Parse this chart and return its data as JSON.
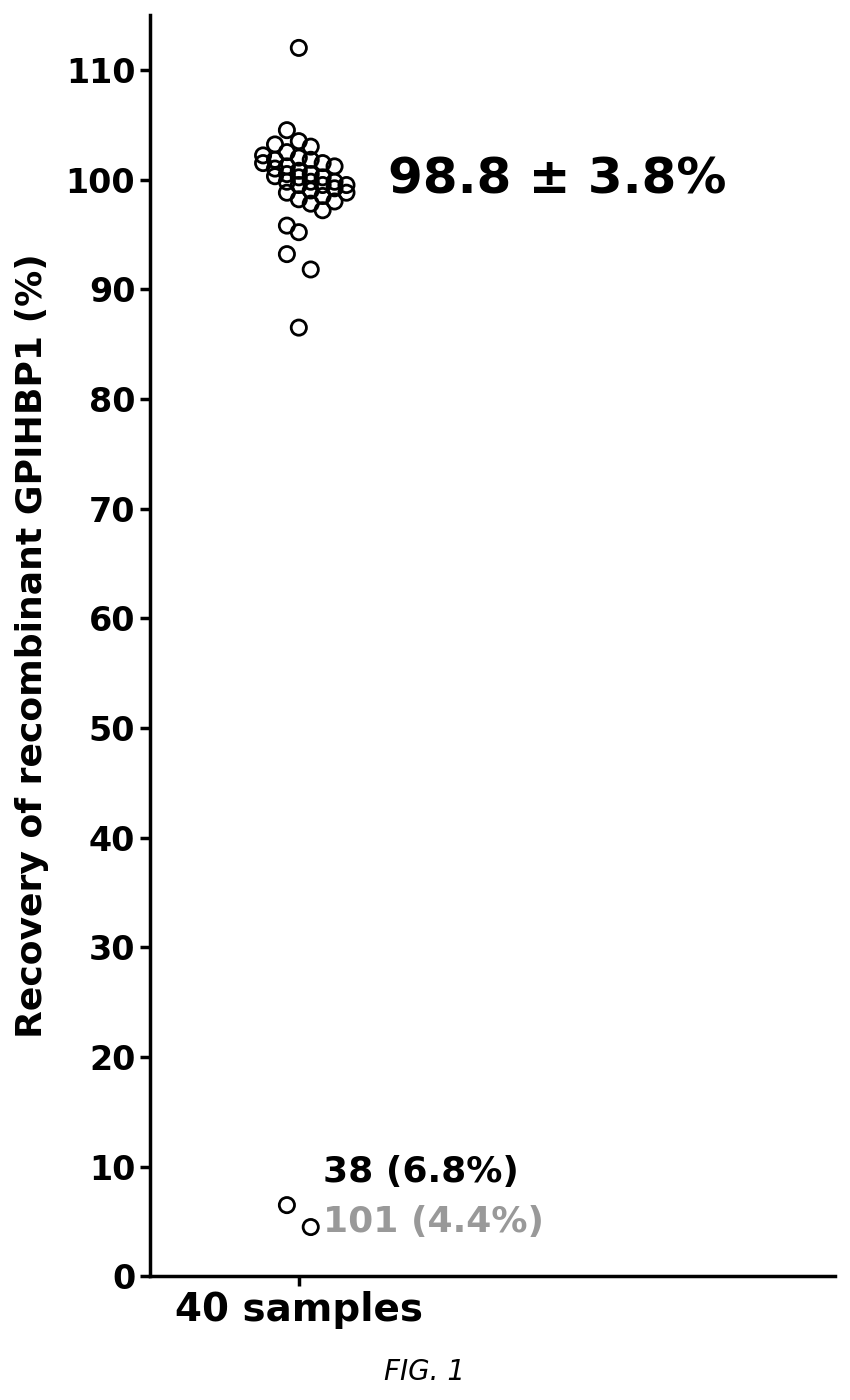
{
  "title": "",
  "xlabel": "40 samples",
  "ylabel": "Recovery of recombinant GPIHBP1 (%)",
  "ylim": [
    0,
    115
  ],
  "yticks": [
    0,
    10,
    20,
    30,
    40,
    50,
    60,
    70,
    80,
    90,
    100,
    110
  ],
  "annotation_mean": "98.8 ± 3.8%",
  "annotation_n1": "38 (6.8%)",
  "annotation_n2": "101 (4.4%)",
  "fig_label": "FIG. 1",
  "scatter_y": [
    112.0,
    104.5,
    103.5,
    103.0,
    103.2,
    102.5,
    102.0,
    101.8,
    101.5,
    101.2,
    102.2,
    101.8,
    101.2,
    100.8,
    100.5,
    100.2,
    99.8,
    99.5,
    101.5,
    101.0,
    100.5,
    100.2,
    99.8,
    99.5,
    99.2,
    98.8,
    100.3,
    99.8,
    99.5,
    99.0,
    98.5,
    98.0,
    98.8,
    98.2,
    97.8,
    97.2,
    95.8,
    95.2,
    93.2,
    91.8,
    86.5,
    6.5,
    4.5
  ],
  "scatter_x_offsets": [
    0.0,
    -0.04,
    0.0,
    0.04,
    -0.08,
    -0.04,
    0.0,
    0.04,
    0.08,
    0.12,
    -0.12,
    -0.08,
    -0.04,
    0.0,
    0.04,
    0.08,
    0.12,
    0.16,
    -0.12,
    -0.08,
    -0.04,
    0.0,
    0.04,
    0.08,
    0.12,
    0.16,
    -0.08,
    -0.04,
    0.0,
    0.04,
    0.08,
    0.12,
    -0.04,
    0.0,
    0.04,
    0.08,
    -0.04,
    0.0,
    -0.04,
    0.04,
    0.0,
    -0.04,
    0.04
  ],
  "dot_color": "none",
  "dot_edgecolor": "#000000",
  "dot_size": 120,
  "dot_linewidth": 2.0,
  "background_color": "#ffffff",
  "axis_color": "#000000",
  "xlabel_fontsize": 28,
  "ylabel_fontsize": 26,
  "tick_fontsize": 24,
  "annotation_fontsize": 36,
  "annotation_n1_fontsize": 26,
  "annotation_n2_fontsize": 26,
  "fig_label_fontsize": 20
}
